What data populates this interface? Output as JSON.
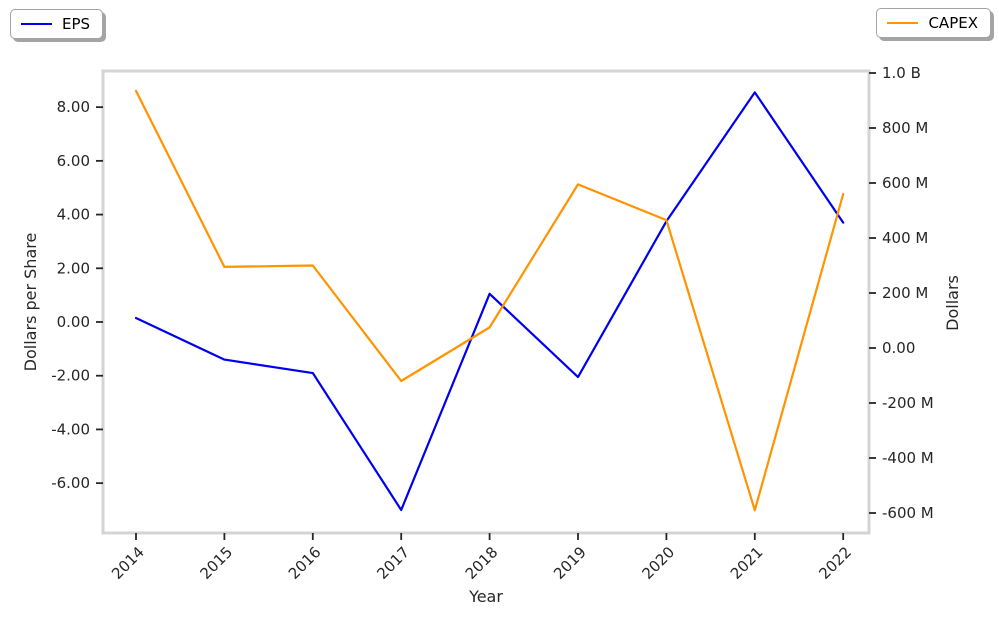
{
  "background_color": "#ffffff",
  "chart_data": {
    "type": "line",
    "title": "",
    "x_axis": {
      "label": "Year",
      "tick_labels": [
        "2014",
        "2015",
        "2016",
        "2017",
        "2018",
        "2019",
        "2020",
        "2021",
        "2022"
      ]
    },
    "left_axis": {
      "label": "Dollars per Share",
      "tick_labels": [
        "8.00",
        "6.00",
        "4.00",
        "2.00",
        "0.00",
        "-2.00",
        "-4.00",
        "-6.00"
      ],
      "tick_values": [
        8,
        6,
        4,
        2,
        0,
        -2,
        -4,
        -6
      ],
      "range": [
        -7.8,
        9.35
      ]
    },
    "right_axis": {
      "label": "Dollars",
      "tick_labels": [
        "1.0 B",
        "800 M",
        "600 M",
        "400 M",
        "200 M",
        "0.00",
        "-200 M",
        "-400 M",
        "-600 M"
      ],
      "tick_values_millions": [
        1000,
        800,
        600,
        400,
        200,
        0,
        -200,
        -400,
        -600
      ],
      "range_millions": [
        -670,
        1007
      ]
    },
    "series": [
      {
        "name": "EPS",
        "axis": "left",
        "unit": "dollars_per_share",
        "color": "#0000f0",
        "values": [
          0.15,
          -1.4,
          -1.9,
          -7.0,
          1.05,
          -2.05,
          3.75,
          8.55,
          3.7
        ]
      },
      {
        "name": "CAPEX",
        "axis": "right",
        "unit": "millions_of_dollars",
        "color": "#ff9300",
        "values": [
          935,
          295,
          300,
          -120,
          75,
          595,
          465,
          -590,
          560
        ]
      }
    ],
    "legend": {
      "positions": [
        "top-left",
        "top-right"
      ],
      "grid": "off"
    }
  }
}
